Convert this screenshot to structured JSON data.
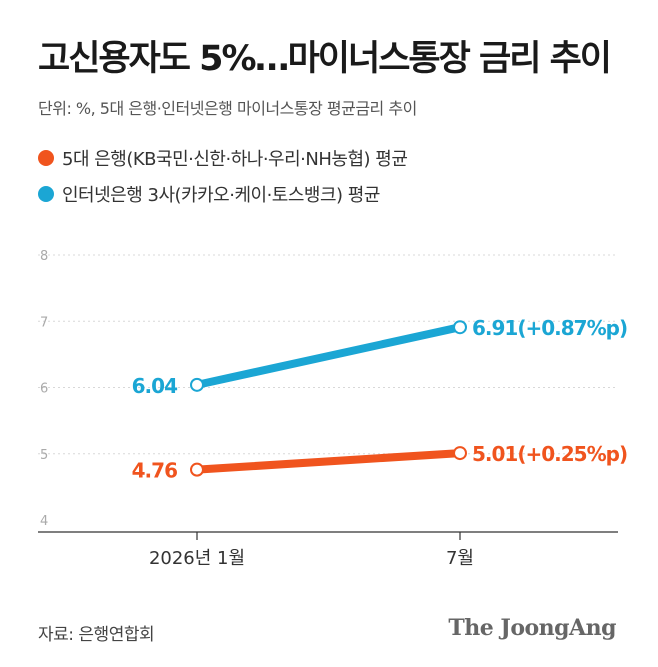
{
  "header": {
    "title": "고신용자도 5%…마이너스통장 금리 추이",
    "unit": "단위: %, 5대 은행·인터넷은행 마이너스통장 평균금리 추이"
  },
  "legend": [
    {
      "label": "5대 은행(KB국민·신한·하나·우리·NH농협) 평균",
      "color": "#f0541e"
    },
    {
      "label": "인터넷은행 3사(카카오·케이·토스뱅크) 평균",
      "color": "#1ba6d4"
    }
  ],
  "footer": {
    "source": "자료: 은행연합회",
    "logo": "The JoongAng"
  },
  "chart_data": {
    "type": "line",
    "categories": [
      "2026년 1월",
      "7월"
    ],
    "ylim": [
      4,
      8
    ],
    "yticks": [
      "4",
      "5",
      "6",
      "7",
      "8"
    ],
    "series": [
      {
        "name": "5대 은행(KB국민·신한·하나·우리·NH농협) 평균",
        "values": [
          4.76,
          5.01
        ],
        "labels": [
          "4.76",
          "5.01(+0.25%p)"
        ],
        "color": "#f0541e"
      },
      {
        "name": "인터넷은행 3사(카카오·케이·토스뱅크) 평균",
        "values": [
          6.04,
          6.91
        ],
        "labels": [
          "6.04",
          "6.91(+0.87%p)"
        ],
        "color": "#1ba6d4"
      }
    ],
    "grid": true
  }
}
